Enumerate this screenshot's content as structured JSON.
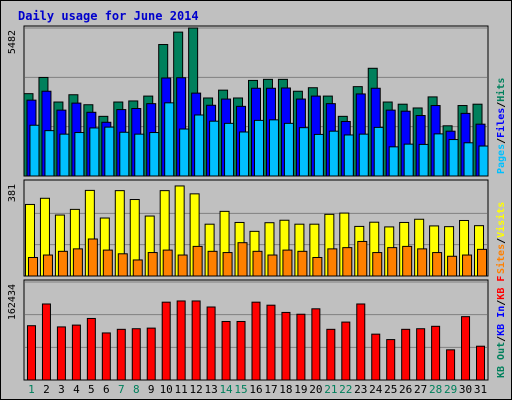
{
  "chart_data": {
    "type": "bar",
    "title": "Daily usage for June 2014",
    "categories": [
      "1",
      "2",
      "3",
      "4",
      "5",
      "6",
      "7",
      "8",
      "9",
      "10",
      "11",
      "12",
      "13",
      "14",
      "15",
      "16",
      "17",
      "18",
      "19",
      "20",
      "21",
      "22",
      "23",
      "24",
      "25",
      "26",
      "27",
      "28",
      "29",
      "30",
      "31"
    ],
    "weekend_days": [
      1,
      7,
      8,
      14,
      15,
      21,
      22,
      28,
      29
    ],
    "colors": {
      "title": "#0000cc",
      "hits": "#00805c",
      "files": "#0000ff",
      "pages": "#00c0ff",
      "visits": "#ffff00",
      "sites": "#ff8000",
      "kbin": "#00805c",
      "kbout": "#0000ff",
      "kbf": "#ff0000",
      "weekday_label": "#000000",
      "weekend_label": "#00805c"
    },
    "panels": [
      {
        "id": "hits-files-pages",
        "max_label": "5482",
        "ylim": [
          0,
          5482
        ],
        "legend": [
          {
            "text": "Hits",
            "color": "#00805c"
          },
          {
            "text": "/",
            "color": "#000000"
          },
          {
            "text": "Files",
            "color": "#0000ff"
          },
          {
            "text": "/",
            "color": "#000000"
          },
          {
            "text": "Pages",
            "color": "#00c0ff"
          }
        ],
        "series": [
          {
            "name": "Hits",
            "color": "#00805c",
            "values": [
              3050,
              3650,
              2740,
              3010,
              2640,
              2210,
              2740,
              2780,
              2960,
              4870,
              5330,
              5482,
              2890,
              3180,
              2890,
              3540,
              3580,
              3580,
              3140,
              3270,
              2960,
              2210,
              3310,
              3990,
              2740,
              2660,
              2520,
              2930,
              1860,
              2610,
              2660
            ]
          },
          {
            "name": "Files",
            "color": "#0000ff",
            "values": [
              2810,
              3140,
              2440,
              2700,
              2360,
              1990,
              2460,
              2500,
              2680,
              3630,
              3640,
              3070,
              2620,
              2850,
              2580,
              3250,
              3250,
              3260,
              2850,
              2960,
              2680,
              2020,
              3040,
              3250,
              2440,
              2400,
              2240,
              2610,
              1660,
              2320,
              1920
            ]
          },
          {
            "name": "Pages",
            "color": "#00c0ff",
            "values": [
              1880,
              1680,
              1550,
              1610,
              1780,
              1810,
              1620,
              1550,
              1610,
              2710,
              1740,
              2260,
              2030,
              1950,
              1630,
              2060,
              2080,
              1950,
              1790,
              1540,
              1660,
              1520,
              1550,
              1800,
              1080,
              1180,
              1170,
              1560,
              1350,
              1230,
              1110
            ]
          }
        ]
      },
      {
        "id": "visits-sites",
        "max_label": "381",
        "ylim": [
          0,
          381
        ],
        "legend": [
          {
            "text": "Visits",
            "color": "#ffff00"
          },
          {
            "text": "/",
            "color": "#000000"
          },
          {
            "text": "Sites",
            "color": "#ff8000"
          }
        ],
        "series": [
          {
            "name": "Visits",
            "color": "#ffff00",
            "values": [
              290,
              315,
              247,
              270,
              347,
              235,
              346,
              310,
              243,
              346,
              365,
              333,
              210,
              262,
              217,
              181,
              216,
              226,
              210,
              210,
              250,
              255,
              201,
              218,
              199,
              217,
              230,
              203,
              200,
              225,
              204
            ]
          },
          {
            "name": "Sites",
            "color": "#ff8000",
            "values": [
              75,
              85,
              100,
              110,
              150,
              105,
              90,
              65,
              95,
              105,
              85,
              120,
              100,
              95,
              135,
              100,
              85,
              105,
              100,
              75,
              110,
              115,
              140,
              95,
              115,
              120,
              110,
              95,
              80,
              85,
              108
            ]
          }
        ]
      },
      {
        "id": "kb",
        "max_label": "162434",
        "ylim": [
          0,
          162434
        ],
        "legend": [
          {
            "text": "KB F",
            "color": "#ff0000"
          },
          {
            "text": "/",
            "color": "#000000"
          },
          {
            "text": "KB In",
            "color": "#0000ff"
          },
          {
            "text": "/",
            "color": "#000000"
          },
          {
            "text": "KB Out",
            "color": "#00805c"
          }
        ],
        "series": [
          {
            "name": "KB F",
            "color": "#ff0000",
            "values": [
              90000,
              126000,
              88000,
              91000,
              102000,
              78000,
              84000,
              85000,
              86000,
              129000,
              131000,
              131000,
              121000,
              97000,
              97000,
              129000,
              124000,
              112000,
              109000,
              118000,
              84000,
              96000,
              126000,
              76000,
              67000,
              84000,
              85000,
              89000,
              50000,
              105000,
              56000
            ]
          }
        ]
      }
    ]
  }
}
